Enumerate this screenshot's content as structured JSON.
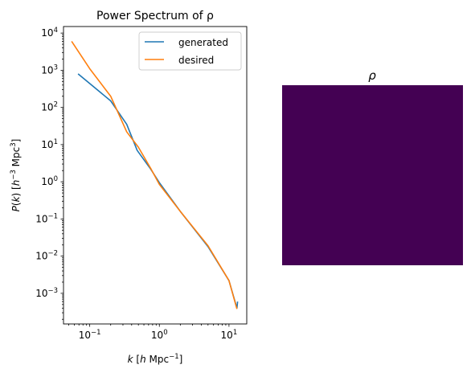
{
  "chart_data": [
    {
      "type": "line",
      "title": "Power Spectrum of ρ",
      "xlabel": "k [h Mpc⁻¹]",
      "ylabel": "P(k) [h⁻³ Mpc³]",
      "xscale": "log",
      "yscale": "log",
      "xlim": [
        0.042,
        18
      ],
      "ylim": [
        0.00015,
        15000
      ],
      "xticks": [
        {
          "value": 0.1,
          "base": "10",
          "exp": "−1"
        },
        {
          "value": 1,
          "base": "10",
          "exp": "0"
        },
        {
          "value": 10,
          "base": "10",
          "exp": "1"
        }
      ],
      "yticks": [
        {
          "value": 0.001,
          "base": "10",
          "exp": "−3"
        },
        {
          "value": 0.01,
          "base": "10",
          "exp": "−2"
        },
        {
          "value": 0.1,
          "base": "10",
          "exp": "−1"
        },
        {
          "value": 1,
          "base": "10",
          "exp": "0"
        },
        {
          "value": 10,
          "base": "10",
          "exp": "1"
        },
        {
          "value": 100,
          "base": "10",
          "exp": "2"
        },
        {
          "value": 1000,
          "base": "10",
          "exp": "3"
        },
        {
          "value": 10000,
          "base": "10",
          "exp": "4"
        }
      ],
      "grid": false,
      "legend_position": "top-right",
      "series": [
        {
          "name": "generated",
          "color": "#1f77b4",
          "x": [
            0.068,
            0.2,
            0.34,
            0.48,
            0.75,
            1.0,
            2.0,
            5.0,
            10.0,
            13.0,
            13.3
          ],
          "y": [
            800,
            150,
            35,
            7.0,
            2.2,
            0.95,
            0.16,
            0.018,
            0.0022,
            0.0004,
            0.0006
          ]
        },
        {
          "name": "desired",
          "color": "#ff7f0e",
          "x": [
            0.055,
            0.1,
            0.2,
            0.34,
            0.5,
            0.75,
            1.0,
            2.0,
            5.0,
            10.0,
            13.0
          ],
          "y": [
            6000,
            1100,
            200,
            22,
            8.5,
            2.3,
            0.85,
            0.16,
            0.019,
            0.0022,
            0.00038
          ]
        }
      ]
    },
    {
      "type": "heatmap",
      "title": "ρ",
      "colormap": "viridis",
      "axes_visible": false
    }
  ]
}
